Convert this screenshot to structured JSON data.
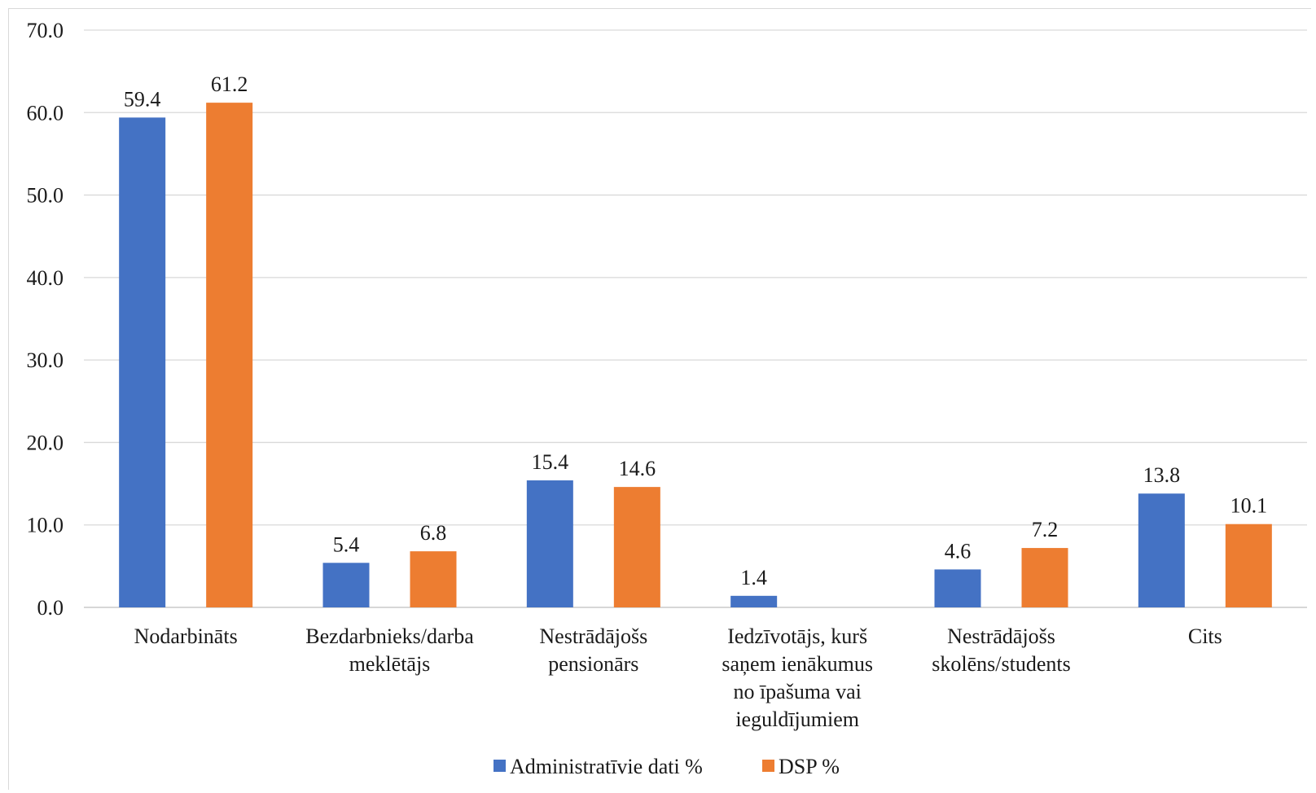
{
  "chart_data": {
    "type": "bar",
    "title": "",
    "xlabel": "",
    "ylabel": "",
    "ylim": [
      0,
      70
    ],
    "ytick_step": 10,
    "ytick_labels": [
      "0.0",
      "10.0",
      "20.0",
      "30.0",
      "40.0",
      "50.0",
      "60.0",
      "70.0"
    ],
    "grid": true,
    "legend_position": "bottom",
    "categories": [
      [
        "Nodarbināts"
      ],
      [
        "Bezdarbnieks/darba",
        "meklētājs"
      ],
      [
        "Nestrādājošs",
        "pensionārs"
      ],
      [
        "Iedzīvotājs, kurš",
        "saņem ienākumus",
        "no īpašuma vai",
        "ieguldījumiem"
      ],
      [
        "Nestrādājošs",
        "skolēns/students"
      ],
      [
        "Cits"
      ]
    ],
    "series": [
      {
        "name": "Administratīvie dati %",
        "color": "#4472c4",
        "values": [
          59.4,
          5.4,
          15.4,
          1.4,
          4.6,
          13.8
        ],
        "labels": [
          "59.4",
          "5.4",
          "15.4",
          "1.4",
          "4.6",
          "13.8"
        ]
      },
      {
        "name": "DSP %",
        "color": "#ed7d31",
        "values": [
          61.2,
          6.8,
          14.6,
          null,
          7.2,
          10.1
        ],
        "labels": [
          "61.2",
          "6.8",
          "14.6",
          "",
          "7.2",
          "10.1"
        ]
      }
    ]
  }
}
